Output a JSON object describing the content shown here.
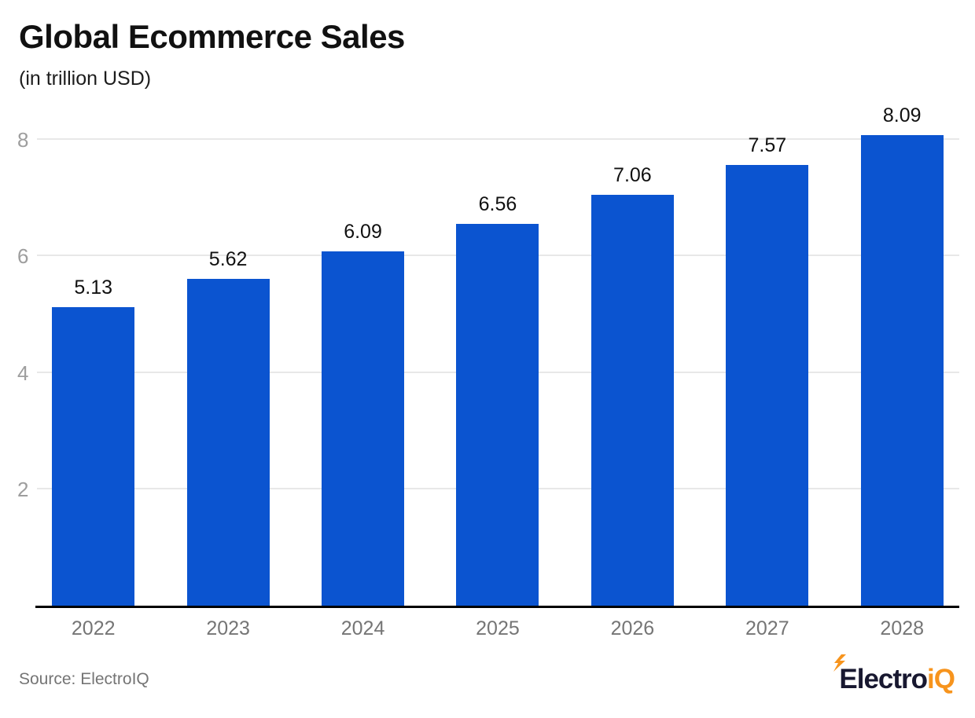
{
  "header": {
    "title": "Global Ecommerce Sales",
    "subtitle": "(in trillion USD)"
  },
  "chart_data": {
    "type": "bar",
    "title": "Global Ecommerce Sales",
    "subtitle": "(in trillion USD)",
    "categories": [
      "2022",
      "2023",
      "2024",
      "2025",
      "2026",
      "2027",
      "2028"
    ],
    "values": [
      5.13,
      5.62,
      6.09,
      6.56,
      7.06,
      7.57,
      8.09
    ],
    "value_labels": [
      "5.13",
      "5.62",
      "6.09",
      "6.56",
      "7.06",
      "7.57",
      "8.09"
    ],
    "xlabel": "",
    "ylabel": "",
    "ylim": [
      0,
      8.5
    ],
    "yticks": [
      2,
      4,
      6,
      8
    ],
    "grid": "horizontal",
    "legend": "none",
    "bar_color": "#0b54d0"
  },
  "footer": {
    "source": "Source: ElectroIQ",
    "logo": {
      "part1": "Electro",
      "part2": "iQ",
      "bolt_icon": "lightning-bolt"
    }
  },
  "colors": {
    "background": "#ffffff",
    "bar": "#0b54d0",
    "gridline": "#e8e8e8",
    "axis_line": "#000000",
    "y_tick_label": "#9e9e9e",
    "x_tick_label": "#757575",
    "value_label": "#111111",
    "title": "#111111",
    "source_text": "#757575",
    "logo_dark": "#181830",
    "logo_orange": "#f7941d"
  }
}
